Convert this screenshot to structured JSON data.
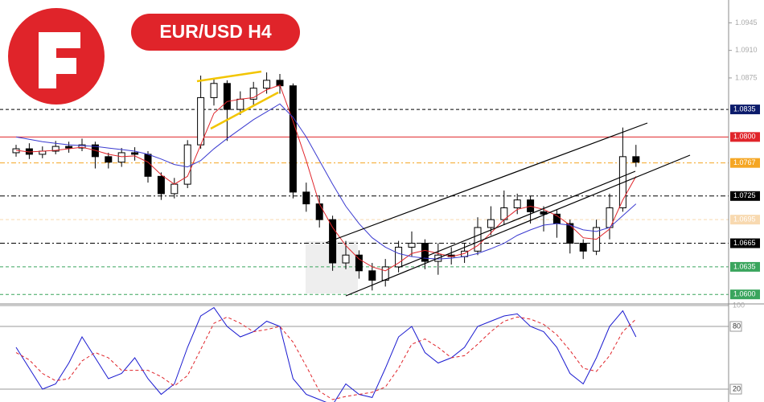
{
  "chart_data": [
    {
      "type": "candlestick",
      "title": "EUR/USD H4",
      "ylim": [
        1.0591,
        1.0974
      ],
      "yticks": [
        1.0945,
        {
          "value": 1.091,
          "label": "1.0910"
        },
        1.0875
      ],
      "levels": [
        {
          "value": 1.0835,
          "color": "#0b1b6b",
          "line_color": "#000000",
          "line": "dashed"
        },
        {
          "value": 1.08,
          "label": "1.0800",
          "color": "#e0242a",
          "line_color": "#e0242a",
          "line": "solid"
        },
        {
          "value": 1.0767,
          "color": "#f5a623",
          "line_color": "#f5a623",
          "line": "dashdot"
        },
        {
          "value": 1.0725,
          "color": "#000000",
          "line_color": "#000000",
          "line": "dashdot"
        },
        {
          "value": 1.0695,
          "color": "#f8d9b0",
          "line_color": "#f8d9b0",
          "line": "dashed"
        },
        {
          "value": 1.0665,
          "color": "#000000",
          "line_color": "#000000",
          "line": "dashdot"
        },
        {
          "value": 1.0635,
          "color": "#3aa55d",
          "line_color": "#3aa55d",
          "line": "dashed"
        },
        {
          "value": 1.06,
          "label": "1.0600",
          "color": "#3aa55d",
          "line_color": "#3aa55d",
          "line": "dashed"
        }
      ],
      "open": [
        1.078,
        1.0785,
        1.0778,
        1.0782,
        1.0788,
        1.0786,
        1.079,
        1.0775,
        1.0768,
        1.078,
        1.0778,
        1.075,
        1.0728,
        1.074,
        1.079,
        1.085,
        1.0868,
        1.0835,
        1.0848,
        1.0862,
        1.0872,
        1.0865,
        1.073,
        1.0715,
        1.0695,
        1.064,
        1.065,
        1.063,
        1.0618,
        1.0635,
        1.066,
        1.0665,
        1.0642,
        1.065,
        1.0648,
        1.0655,
        1.0685,
        1.0695,
        1.071,
        1.072,
        1.0705,
        1.0702,
        1.069,
        1.0665,
        1.0655,
        1.0685,
        1.071,
        1.0775
      ],
      "close": [
        1.0785,
        1.0778,
        1.0782,
        1.0788,
        1.0786,
        1.079,
        1.0775,
        1.0768,
        1.078,
        1.0778,
        1.075,
        1.0728,
        1.074,
        1.079,
        1.085,
        1.0868,
        1.0835,
        1.0848,
        1.0862,
        1.0872,
        1.0865,
        1.073,
        1.0715,
        1.0695,
        1.064,
        1.065,
        1.063,
        1.0618,
        1.0635,
        1.066,
        1.0665,
        1.0642,
        1.065,
        1.0648,
        1.0655,
        1.0685,
        1.0695,
        1.071,
        1.072,
        1.0705,
        1.0702,
        1.069,
        1.0665,
        1.0655,
        1.0685,
        1.071,
        1.0775,
        1.0768
      ],
      "high": [
        1.079,
        1.0792,
        1.0788,
        1.0795,
        1.0794,
        1.0798,
        1.0794,
        1.078,
        1.0786,
        1.0787,
        1.0782,
        1.0755,
        1.0748,
        1.0796,
        1.0878,
        1.0875,
        1.0872,
        1.0858,
        1.087,
        1.0882,
        1.088,
        1.0868,
        1.0742,
        1.0725,
        1.07,
        1.0668,
        1.0656,
        1.064,
        1.0645,
        1.0668,
        1.068,
        1.067,
        1.0665,
        1.066,
        1.0665,
        1.0698,
        1.0712,
        1.0732,
        1.0728,
        1.0725,
        1.0712,
        1.0708,
        1.0695,
        1.067,
        1.0695,
        1.0728,
        1.0812,
        1.079
      ],
      "low": [
        1.0775,
        1.0772,
        1.0773,
        1.0778,
        1.078,
        1.0782,
        1.076,
        1.076,
        1.0762,
        1.077,
        1.0742,
        1.072,
        1.0722,
        1.0735,
        1.0785,
        1.084,
        1.0795,
        1.0828,
        1.084,
        1.0855,
        1.0855,
        1.0722,
        1.0705,
        1.0685,
        1.063,
        1.0632,
        1.062,
        1.0605,
        1.061,
        1.0628,
        1.0648,
        1.0632,
        1.0625,
        1.0638,
        1.064,
        1.065,
        1.0675,
        1.0688,
        1.0702,
        1.069,
        1.068,
        1.0672,
        1.0652,
        1.0645,
        1.065,
        1.067,
        1.0705,
        1.0762
      ],
      "series": [
        {
          "color": "#e0242a",
          "values": [
            1.0783,
            1.0781,
            1.0782,
            1.0783,
            1.0785,
            1.0787,
            1.0783,
            1.0778,
            1.0775,
            1.0776,
            1.0768,
            1.0752,
            1.074,
            1.075,
            1.079,
            1.083,
            1.0845,
            1.0848,
            1.085,
            1.086,
            1.0866,
            1.082,
            1.077,
            1.0715,
            1.0685,
            1.0662,
            1.0645,
            1.0635,
            1.063,
            1.064,
            1.0652,
            1.0656,
            1.0652,
            1.0648,
            1.0652,
            1.0662,
            1.0678,
            1.0695,
            1.0708,
            1.0712,
            1.0708,
            1.07,
            1.0688,
            1.0672,
            1.067,
            1.0683,
            1.072,
            1.075
          ]
        },
        {
          "color": "#3a3ad0",
          "values": [
            1.08,
            1.0797,
            1.0794,
            1.0792,
            1.079,
            1.0789,
            1.0788,
            1.0786,
            1.0784,
            1.0782,
            1.0778,
            1.0772,
            1.0765,
            1.0762,
            1.077,
            1.0785,
            1.0798,
            1.081,
            1.0822,
            1.0832,
            1.0842,
            1.0825,
            1.08,
            1.077,
            1.074,
            1.0712,
            1.069,
            1.0672,
            1.066,
            1.0652,
            1.0648,
            1.0646,
            1.0645,
            1.0646,
            1.0648,
            1.0652,
            1.0658,
            1.0665,
            1.0675,
            1.0682,
            1.0688,
            1.069,
            1.0688,
            1.0682,
            1.068,
            1.0685,
            1.07,
            1.0715
          ]
        }
      ]
    },
    {
      "type": "line",
      "ylim": [
        7.7,
        100
      ],
      "yticks": [
        100,
        80,
        20
      ],
      "series": [
        {
          "color": "#1a1ad0",
          "dash": "solid",
          "values": [
            60,
            40,
            20,
            25,
            45,
            70,
            50,
            30,
            35,
            50,
            30,
            15,
            25,
            60,
            90,
            98,
            80,
            70,
            75,
            85,
            80,
            30,
            15,
            10,
            5,
            25,
            15,
            12,
            40,
            70,
            80,
            55,
            45,
            50,
            60,
            80,
            85,
            90,
            92,
            80,
            75,
            60,
            35,
            25,
            50,
            80,
            95,
            70
          ]
        },
        {
          "color": "#e0242a",
          "dash": "dashed",
          "values": [
            55,
            48,
            35,
            28,
            30,
            47,
            55,
            50,
            38,
            38,
            38,
            32,
            23,
            33,
            58,
            83,
            89,
            83,
            75,
            77,
            80,
            65,
            42,
            18,
            10,
            13,
            15,
            17,
            22,
            40,
            63,
            68,
            60,
            50,
            52,
            63,
            75,
            85,
            89,
            87,
            82,
            72,
            57,
            40,
            37,
            52,
            75,
            87
          ]
        }
      ]
    }
  ]
}
